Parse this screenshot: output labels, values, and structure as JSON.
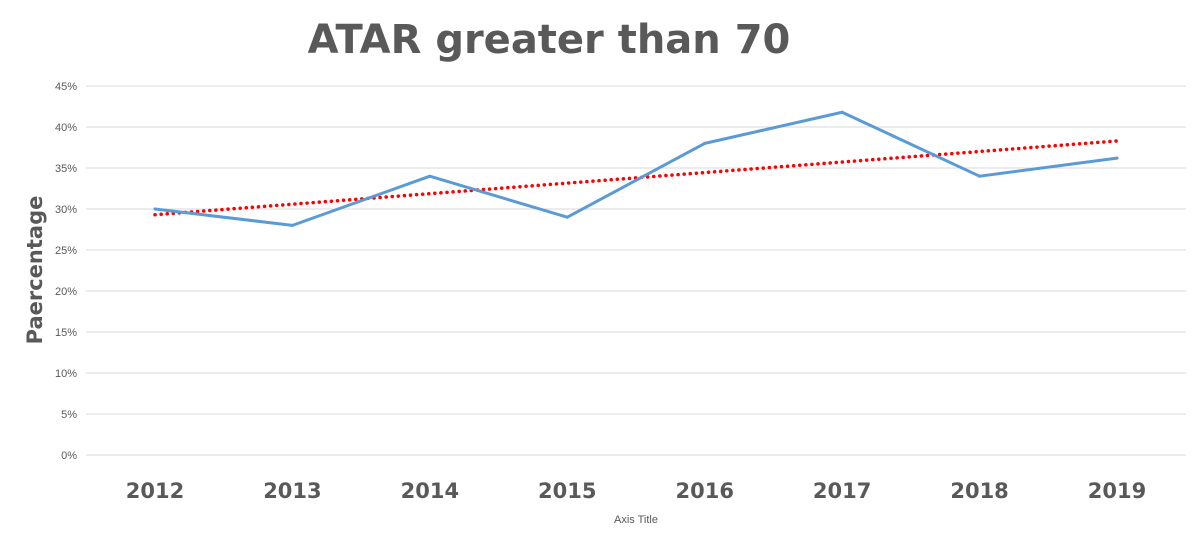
{
  "chart_data": {
    "type": "line",
    "title": "ATAR greater than 70",
    "xlabel": "Axis Title",
    "ylabel": "Paercentage",
    "categories": [
      "2012",
      "2013",
      "2014",
      "2015",
      "2016",
      "2017",
      "2018",
      "2019"
    ],
    "yticks": [
      "0%",
      "5%",
      "10%",
      "15%",
      "20%",
      "25%",
      "30%",
      "35%",
      "40%",
      "45%"
    ],
    "ylim": [
      0,
      45
    ],
    "grid": true,
    "series": [
      {
        "values": [
          30,
          28,
          34,
          29,
          38,
          41.8,
          34,
          36.2
        ],
        "color": "#5b9bd5",
        "style": "solid"
      }
    ],
    "trendline": {
      "type": "linear",
      "start": 29.3,
      "end": 38.3,
      "color": "#ff0000",
      "style": "dotted"
    }
  }
}
